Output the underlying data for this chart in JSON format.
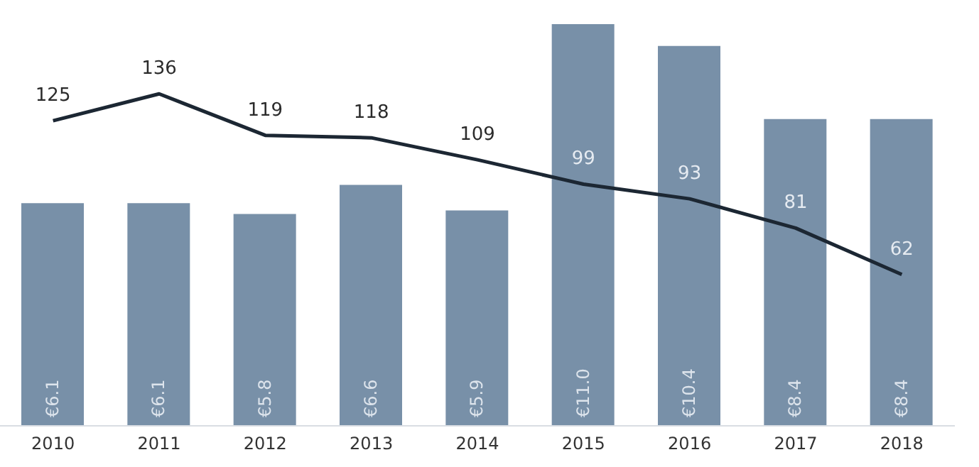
{
  "chart_data": {
    "type": "bar",
    "categories": [
      "2010",
      "2011",
      "2012",
      "2013",
      "2014",
      "2015",
      "2016",
      "2017",
      "2018"
    ],
    "series": [
      {
        "color": "#7890a8",
        "values": [
          6.1,
          6.1,
          5.8,
          6.6,
          5.9,
          11.0,
          10.4,
          8.4,
          8.4
        ],
        "value_labels": [
          "€6.1",
          "€6.1",
          "€5.8",
          "€6.6",
          "€5.9",
          "€11.0",
          "€10.4",
          "€8.4",
          "€8.4"
        ]
      },
      {
        "type": "line",
        "axis": "y2",
        "color": "#1c2733",
        "values": [
          125,
          136,
          119,
          118,
          109,
          99,
          93,
          81,
          62
        ],
        "value_labels": [
          "125",
          "136",
          "119",
          "118",
          "109",
          "99",
          "93",
          "81",
          "62"
        ]
      }
    ]
  }
}
